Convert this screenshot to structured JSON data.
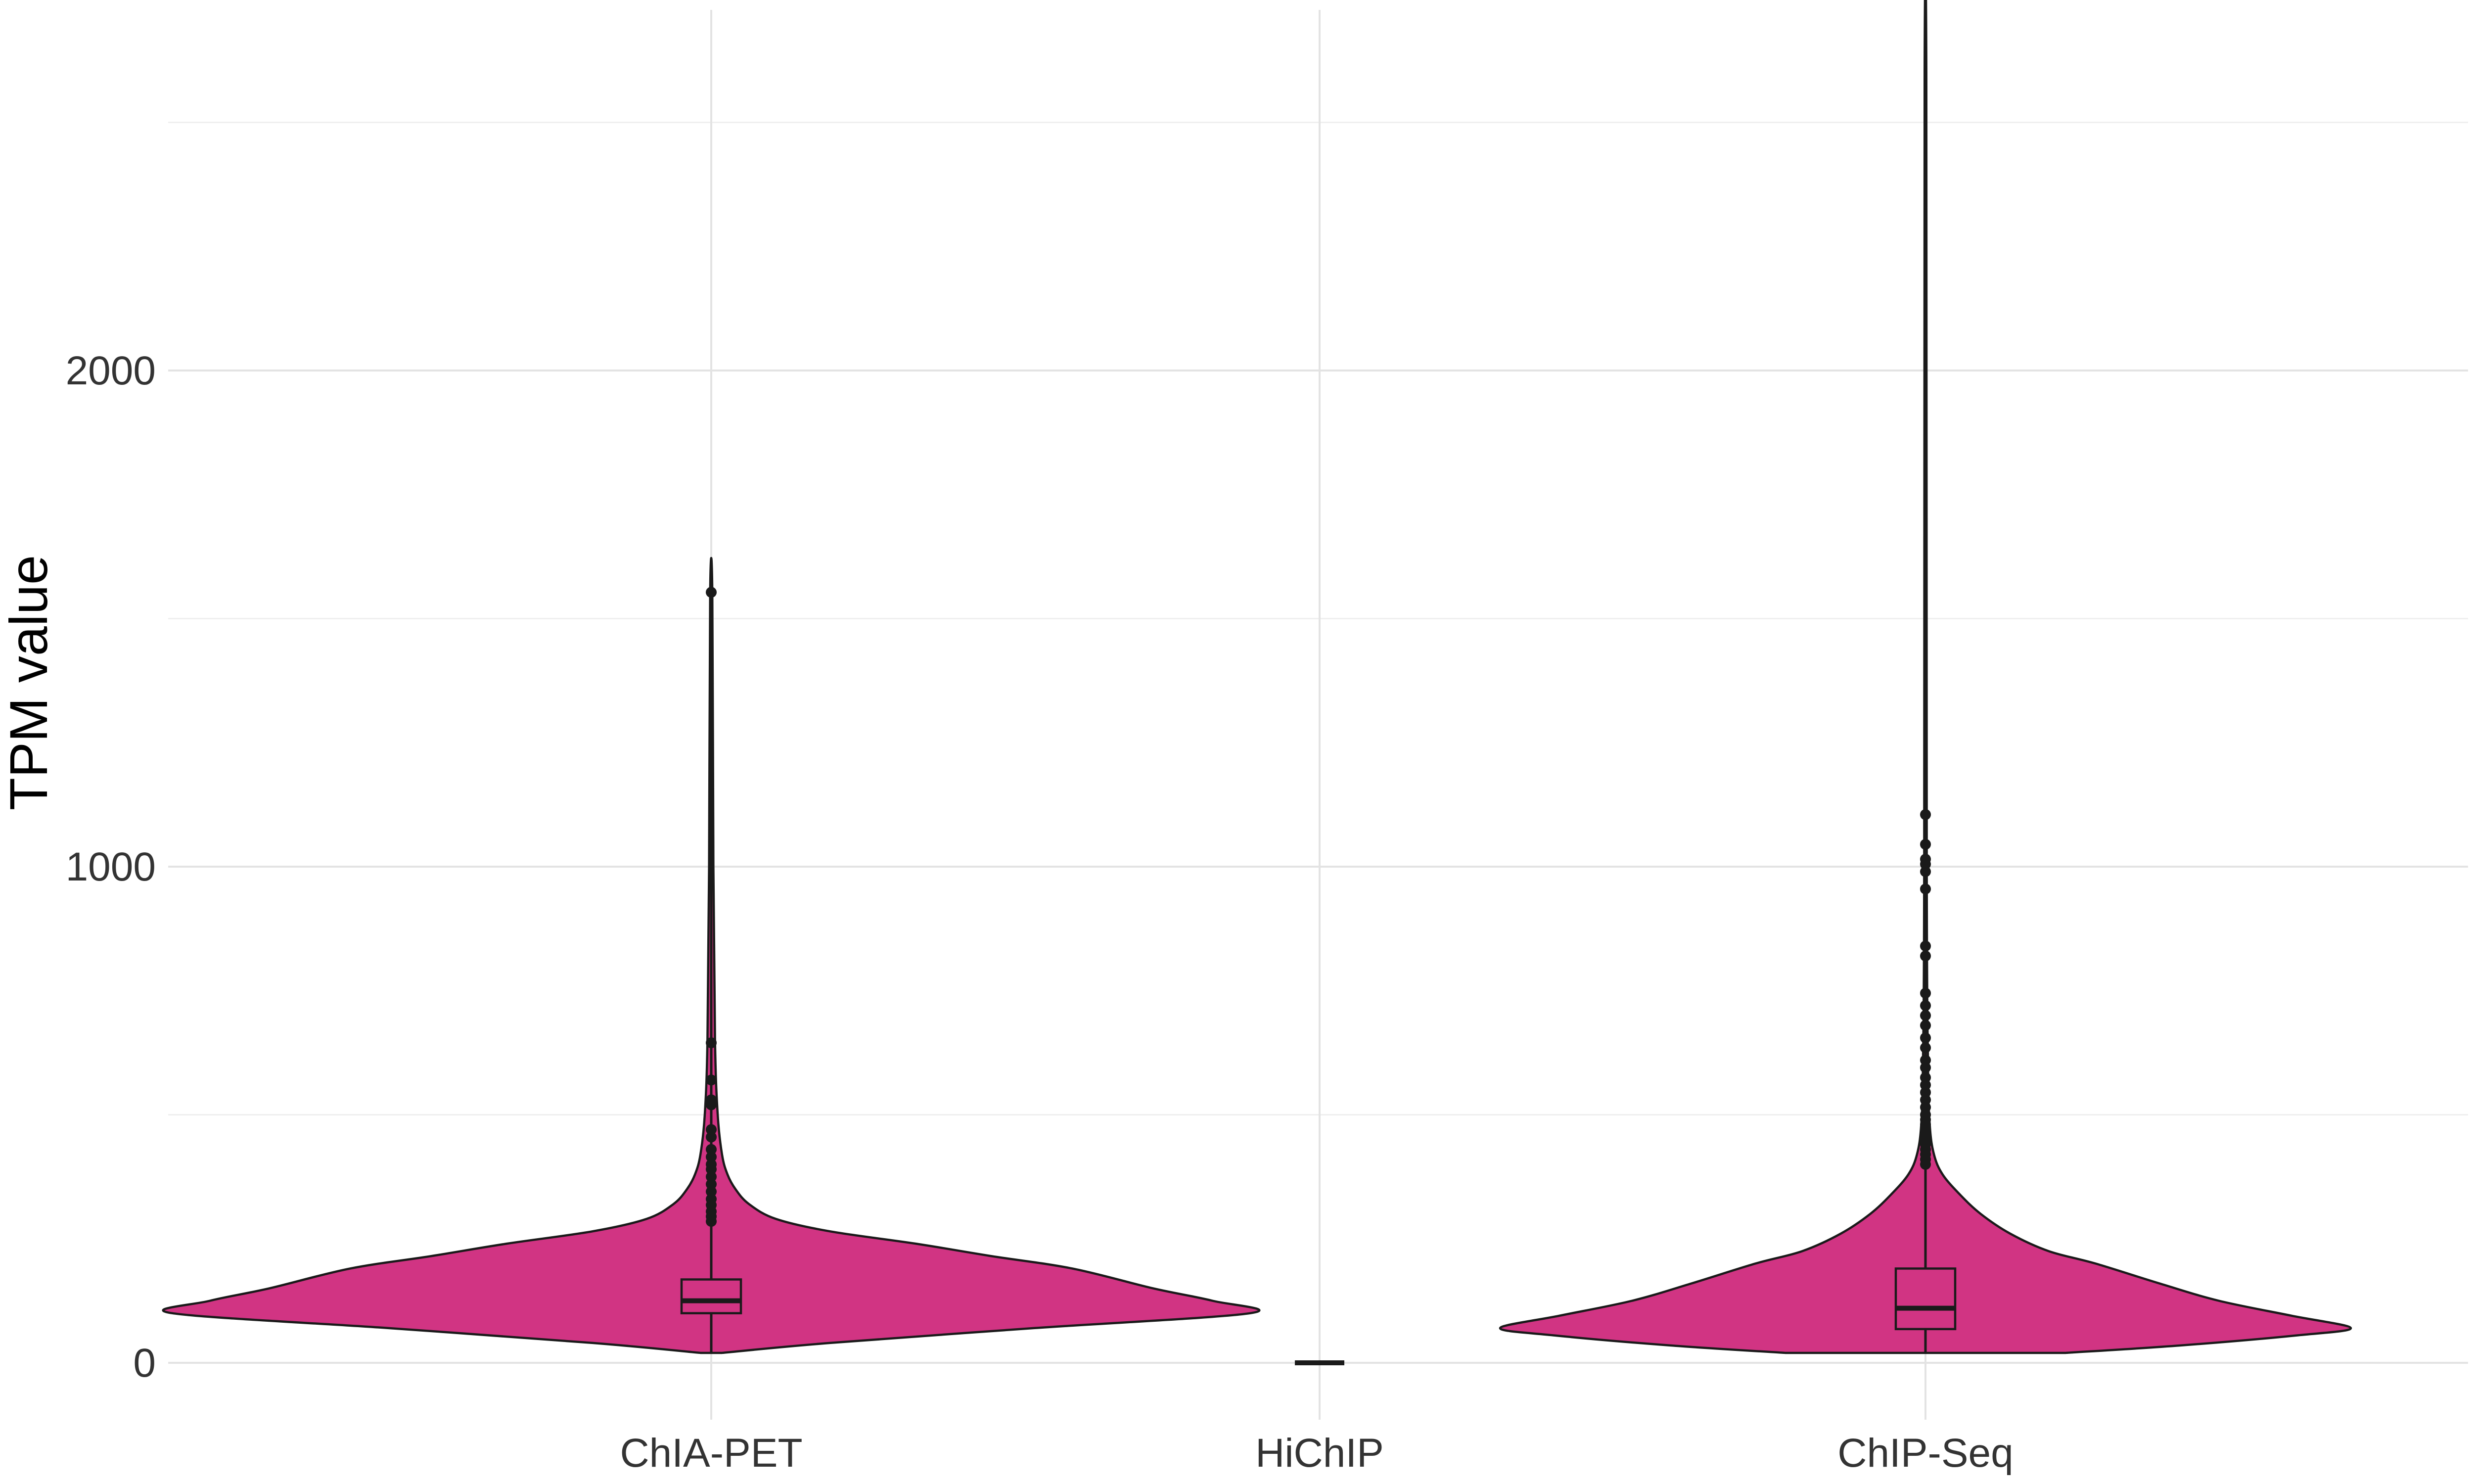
{
  "chart_data": {
    "type": "violin",
    "title": "",
    "xlabel": "",
    "ylabel": "TPM value",
    "ylim": [
      -230,
      2740
    ],
    "yticks": [
      0,
      1000,
      2000
    ],
    "ytick_labels": [
      "0",
      "1000",
      "2000"
    ],
    "y_minor_gridlines": [
      500,
      1500,
      2500
    ],
    "grid": true,
    "legend": "none",
    "fill_color": "#d13483",
    "categories": [
      "ChIA-PET",
      "HiChIP",
      "ChIP-Seq"
    ],
    "groups": [
      {
        "name": "ChIA-PET",
        "box": {
          "min": 20,
          "q1": 100,
          "median": 125,
          "q3": 168,
          "whisker_high": 1553
        },
        "outliers": [
          1553,
          645,
          570,
          530,
          520,
          470,
          455,
          430,
          415,
          400,
          390,
          375,
          360,
          345,
          330,
          318,
          305,
          295,
          285
        ],
        "density_profile": [
          [
            20,
            0.02
          ],
          [
            40,
            0.22
          ],
          [
            70,
            0.6
          ],
          [
            100,
            1.0
          ],
          [
            125,
            0.93
          ],
          [
            150,
            0.82
          ],
          [
            190,
            0.67
          ],
          [
            215,
            0.52
          ],
          [
            240,
            0.38
          ],
          [
            265,
            0.22
          ],
          [
            290,
            0.12
          ],
          [
            320,
            0.07
          ],
          [
            350,
            0.045
          ],
          [
            380,
            0.03
          ],
          [
            420,
            0.02
          ],
          [
            500,
            0.012
          ],
          [
            650,
            0.007
          ],
          [
            1000,
            0.004
          ],
          [
            1553,
            0.002
          ]
        ]
      },
      {
        "name": "HiChIP",
        "box": {
          "min": 0,
          "q1": 0,
          "median": 0,
          "q3": 0,
          "whisker_high": 0
        },
        "outliers": [],
        "density_profile": []
      },
      {
        "name": "ChIP-Seq",
        "box": {
          "min": 20,
          "q1": 68,
          "median": 110,
          "q3": 190,
          "whisker_high": 2600
        },
        "outliers": [
          1105,
          1045,
          1015,
          1005,
          990,
          955,
          840,
          820,
          745,
          720,
          700,
          680,
          655,
          635,
          610,
          595,
          575,
          560,
          545,
          530,
          515,
          500,
          490,
          480,
          470,
          460,
          450,
          440,
          430,
          420,
          410,
          400
        ],
        "density_profile": [
          [
            20,
            0.33
          ],
          [
            35,
            0.6
          ],
          [
            55,
            0.87
          ],
          [
            70,
            1.0
          ],
          [
            95,
            0.86
          ],
          [
            125,
            0.69
          ],
          [
            160,
            0.55
          ],
          [
            200,
            0.4
          ],
          [
            225,
            0.29
          ],
          [
            260,
            0.2
          ],
          [
            300,
            0.13
          ],
          [
            340,
            0.08
          ],
          [
            380,
            0.04
          ],
          [
            420,
            0.02
          ],
          [
            480,
            0.01
          ],
          [
            600,
            0.006
          ],
          [
            1000,
            0.003
          ],
          [
            2600,
            0.002
          ]
        ]
      }
    ]
  }
}
